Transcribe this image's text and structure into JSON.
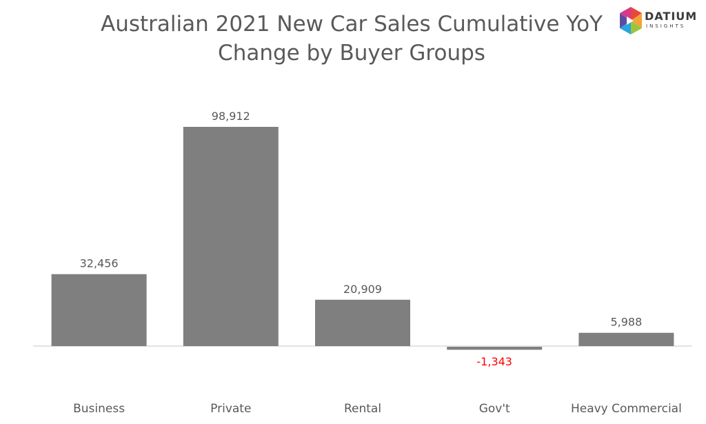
{
  "chart_data": {
    "type": "bar",
    "title": "Australian 2021 New Car Sales Cumulative YoY Change by Buyer Groups",
    "title_lines": [
      "Australian 2021 New Car Sales Cumulative YoY",
      "Change by Buyer Groups"
    ],
    "categories": [
      "Business",
      "Private",
      "Rental",
      "Gov't",
      "Heavy Commercial"
    ],
    "values": [
      32456,
      98912,
      20909,
      -1343,
      5988
    ],
    "value_labels": [
      "32,456",
      "98,912",
      "20,909",
      "-1,343",
      "5,988"
    ],
    "xlabel": "",
    "ylabel": "",
    "grid": false,
    "colors": {
      "bar": "#7f7f7f",
      "label": "#595959",
      "negative_label": "#ff0000",
      "axis": "#d9d9d9"
    }
  },
  "logo": {
    "word": "DATIUM",
    "sub": "INSIGHTS"
  }
}
